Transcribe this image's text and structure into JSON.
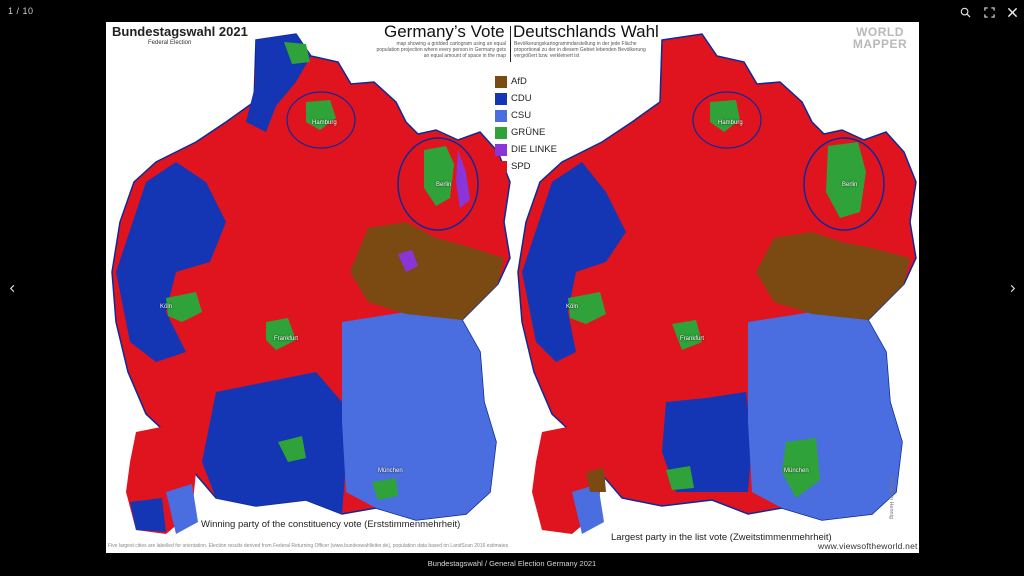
{
  "viewer": {
    "counter": "1 / 10",
    "caption": "Bundestagswahl / General Election Germany 2021"
  },
  "icons": {
    "zoom": "magnifier-icon",
    "fullscreen": "fullscreen-icon",
    "close": "close-icon",
    "prev": "chevron-left-icon",
    "next": "chevron-right-icon"
  },
  "poster": {
    "title": "Bundestagswahl 2021",
    "subtitle": "Federal Election",
    "title_en": "Germany’s Vote",
    "title_de": "Deutschlands Wahl",
    "desc_en": "map showing a gridded cartogram using an equal population projection where every person in Germany gets an equal amount of space in the map",
    "desc_de": "Bevölkerungskartogrammdarstellung in der jede Fläche proportional zu der in diesem Gebiet lebenden Bevölkerung vergrößert bzw. verkleinert ist",
    "logo_line1": "WORLD",
    "logo_line2": "MAPPER",
    "legend": [
      {
        "label": "AfD",
        "color": "#7a4a12"
      },
      {
        "label": "CDU",
        "color": "#1436b4"
      },
      {
        "label": "CSU",
        "color": "#4a6ee0"
      },
      {
        "label": "GRÜNE",
        "color": "#2fa33a"
      },
      {
        "label": "DIE LINKE",
        "color": "#8a35d8"
      },
      {
        "label": "SPD",
        "color": "#e0141e"
      }
    ],
    "footer_left": "Winning party of the constituency vote (Erststimmenmehrheit)",
    "footer_right": "Largest party in the list vote (Zweitstimmenmehrheit)",
    "source": "Five largest cities are labelled for orientation. Election results derived from Federal Returning Officer (www.bundeswahlleiter.de), population data based on LandScan 2016 estimates",
    "website": "www.viewsoftheworld.net",
    "author": "Benjamin Hennig",
    "cities": [
      "Hamburg",
      "Berlin",
      "Köln",
      "Frankfurt",
      "München"
    ]
  }
}
